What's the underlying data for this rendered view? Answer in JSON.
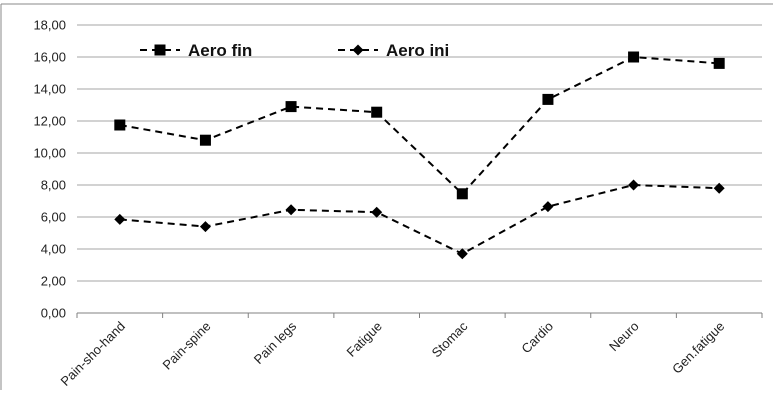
{
  "chart_data": {
    "type": "line",
    "title": "",
    "xlabel": "",
    "ylabel": "",
    "categories": [
      "Pain-sho-hand",
      "Pain-spine",
      "Pain legs",
      "Fatigue",
      "Stomac",
      "Cardio",
      "Neuro",
      "Gen.fatigue"
    ],
    "y_ticks": [
      "0,00",
      "2,00",
      "4,00",
      "6,00",
      "8,00",
      "10,00",
      "12,00",
      "14,00",
      "16,00",
      "18,00"
    ],
    "ylim": [
      0,
      18
    ],
    "grid": true,
    "legend_position": "top-left",
    "series": [
      {
        "name": "Aero fin",
        "marker": "square",
        "line_style": "dashed",
        "color": "#000000",
        "values": [
          11.75,
          10.8,
          12.9,
          12.55,
          7.45,
          13.35,
          16.0,
          15.6
        ]
      },
      {
        "name": "Aero ini",
        "marker": "diamond",
        "line_style": "dashed",
        "color": "#000000",
        "values": [
          5.85,
          5.4,
          6.45,
          6.3,
          3.7,
          6.65,
          8.0,
          7.8
        ]
      }
    ]
  }
}
